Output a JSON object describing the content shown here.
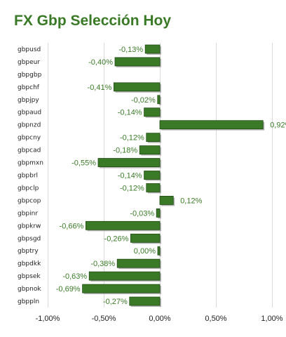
{
  "chart_data": {
    "type": "bar",
    "orientation": "horizontal",
    "title": "FX Gbp Selección Hoy",
    "categories": [
      "gbpusd",
      "gbpeur",
      "gbpgbp",
      "gbpchf",
      "gbpjpy",
      "gbpaud",
      "gbpnzd",
      "gbpcny",
      "gbpcad",
      "gbpmxn",
      "gbpbrl",
      "gbpclp",
      "gbpcop",
      "gbpinr",
      "gbpkrw",
      "gbpsgd",
      "gbptry",
      "gbpdkk",
      "gbpsek",
      "gbpnok",
      "gbppln"
    ],
    "values": [
      -0.13,
      -0.4,
      null,
      -0.41,
      -0.02,
      -0.14,
      0.92,
      -0.12,
      -0.18,
      -0.55,
      -0.14,
      -0.12,
      0.12,
      -0.03,
      -0.66,
      -0.26,
      0.0,
      -0.38,
      -0.63,
      -0.69,
      -0.27
    ],
    "data_labels": [
      "-0,13%",
      "-0,40%",
      "",
      "-0,41%",
      "-0,02%",
      "-0,14%",
      "0,92%",
      "-0,12%",
      "-0,18%",
      "-0,55%",
      "-0,14%",
      "-0,12%",
      "0,12%",
      "-0,03%",
      "-0,66%",
      "-0,26%",
      "0,00%",
      "-0,38%",
      "-0,63%",
      "-0,69%",
      "-0,27%"
    ],
    "xlim": [
      -1.0,
      1.0
    ],
    "xticks": [
      -1.0,
      -0.5,
      0.0,
      0.5,
      1.0
    ],
    "xtick_labels": [
      "-1,00%",
      "-0,50%",
      "0,00%",
      "0,50%",
      "1,00%"
    ],
    "grid": true,
    "colors": {
      "bar": "#3a7a27",
      "bar_border": "#1f4a12",
      "shadow": "#9a9a9a",
      "label": "#3a7a27",
      "grid": "#d9d9d9"
    }
  }
}
